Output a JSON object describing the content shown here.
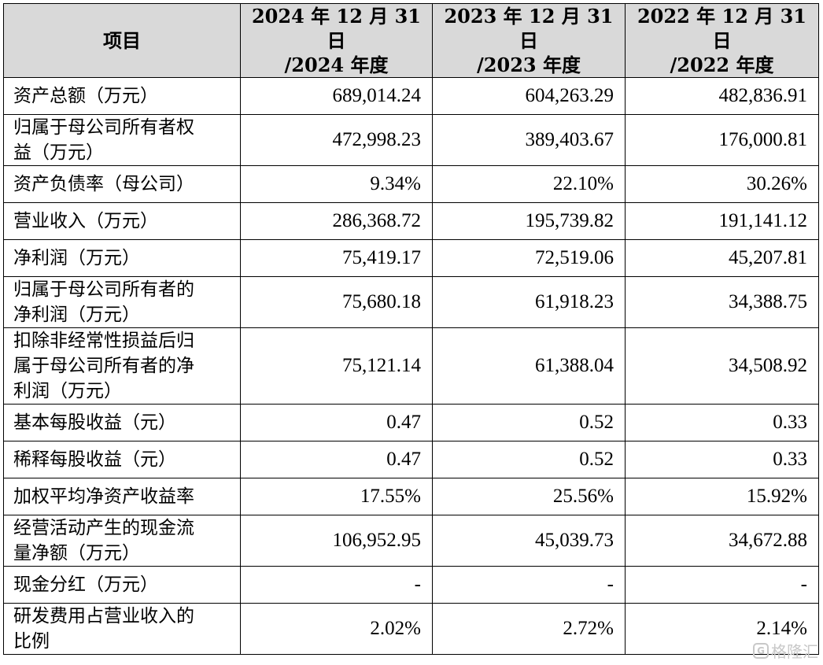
{
  "table": {
    "headers": [
      {
        "line1": "项目",
        "line2": ""
      },
      {
        "line1": "2024 年 12 月 31 日",
        "line2": "/2024 年度"
      },
      {
        "line1": "2023 年 12 月 31 日",
        "line2": "/2023 年度"
      },
      {
        "line1": "2022 年 12 月 31 日",
        "line2": "/2022 年度"
      }
    ],
    "rows": [
      {
        "label_lines": [
          "资产总额（万元）"
        ],
        "values": [
          "689,014.24",
          "604,263.29",
          "482,836.91"
        ]
      },
      {
        "label_lines": [
          "归属于母公司所有者权",
          "益（万元）"
        ],
        "values": [
          "472,998.23",
          "389,403.67",
          "176,000.81"
        ]
      },
      {
        "label_lines": [
          "资产负债率（母公司）"
        ],
        "values": [
          "9.34%",
          "22.10%",
          "30.26%"
        ]
      },
      {
        "label_lines": [
          "营业收入（万元）"
        ],
        "values": [
          "286,368.72",
          "195,739.82",
          "191,141.12"
        ]
      },
      {
        "label_lines": [
          "净利润（万元）"
        ],
        "values": [
          "75,419.17",
          "72,519.06",
          "45,207.81"
        ]
      },
      {
        "label_lines": [
          "归属于母公司所有者的",
          "净利润（万元）"
        ],
        "values": [
          "75,680.18",
          "61,918.23",
          "34,388.75"
        ]
      },
      {
        "label_lines": [
          "扣除非经常性损益后归",
          "属于母公司所有者的净",
          "利润（万元）"
        ],
        "values": [
          "75,121.14",
          "61,388.04",
          "34,508.92"
        ]
      },
      {
        "label_lines": [
          "基本每股收益（元）"
        ],
        "values": [
          "0.47",
          "0.52",
          "0.33"
        ]
      },
      {
        "label_lines": [
          "稀释每股收益（元）"
        ],
        "values": [
          "0.47",
          "0.52",
          "0.33"
        ]
      },
      {
        "label_lines": [
          "加权平均净资产收益率"
        ],
        "values": [
          "17.55%",
          "25.56%",
          "15.92%"
        ]
      },
      {
        "label_lines": [
          "经营活动产生的现金流",
          "量净额（万元）"
        ],
        "values": [
          "106,952.95",
          "45,039.73",
          "34,672.88"
        ]
      },
      {
        "label_lines": [
          "现金分红（万元）"
        ],
        "values": [
          "-",
          "-",
          "-"
        ]
      },
      {
        "label_lines": [
          "研发费用占营业收入的",
          "比例"
        ],
        "values": [
          "2.02%",
          "2.72%",
          "2.14%"
        ]
      }
    ]
  },
  "watermark": {
    "logo_text": "G",
    "text": "格隆汇",
    "color": "#c8c8c8"
  }
}
